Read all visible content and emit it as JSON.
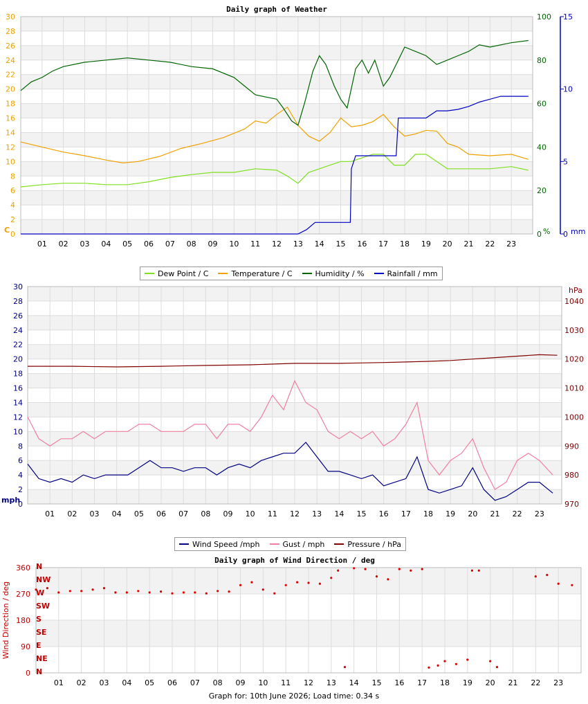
{
  "footer_text": "Graph for: 10th June 2026; Load time: 0.34 s",
  "x_ticks": [
    "01",
    "02",
    "03",
    "04",
    "05",
    "06",
    "07",
    "08",
    "09",
    "10",
    "11",
    "12",
    "13",
    "14",
    "15",
    "16",
    "17",
    "18",
    "19",
    "20",
    "21",
    "22",
    "23"
  ],
  "chart_data": [
    {
      "type": "line",
      "title": "Daily graph of Weather",
      "y_left": {
        "label": "C",
        "min": 0,
        "max": 30,
        "ticks": [
          0,
          2,
          4,
          6,
          8,
          10,
          12,
          14,
          16,
          18,
          20,
          22,
          24,
          26,
          28,
          30
        ],
        "color": "#f0a000"
      },
      "y_right_humidity": {
        "label": "%",
        "min": 0,
        "max": 100,
        "ticks": [
          0,
          20,
          40,
          60,
          80,
          100
        ],
        "color": "#006400"
      },
      "y_right_rain": {
        "label": "mm",
        "min": 0,
        "max": 15,
        "ticks": [
          0,
          5,
          10,
          15
        ],
        "color": "#0000c0"
      },
      "grid": true,
      "legend_position": "bottom",
      "series": [
        {
          "name": "Dew Point / C",
          "color": "#7fe020",
          "axis": "left",
          "x": [
            0,
            1,
            2,
            3,
            4,
            5,
            6,
            7,
            8,
            9,
            10,
            11,
            12,
            12.5,
            13,
            13.5,
            14,
            14.5,
            15,
            15.5,
            16,
            16.5,
            17,
            17.5,
            18,
            18.5,
            19,
            19.5,
            20,
            21,
            22,
            23,
            23.8
          ],
          "y": [
            6.5,
            6.8,
            7,
            7,
            6.8,
            6.8,
            7.2,
            7.8,
            8.2,
            8.5,
            8.5,
            9,
            8.8,
            8,
            7,
            8.5,
            9,
            9.5,
            10,
            10,
            10.5,
            11,
            11,
            9.5,
            9.5,
            11,
            11,
            10,
            9,
            9,
            9,
            9.3,
            8.8
          ]
        },
        {
          "name": "Temperature / C",
          "color": "#f0a000",
          "axis": "left",
          "x": [
            0,
            1,
            2,
            3,
            4,
            4.8,
            5.5,
            6.5,
            7.5,
            8.5,
            9.5,
            10.5,
            11,
            11.5,
            12,
            12.5,
            13,
            13.5,
            14,
            14.5,
            15,
            15.5,
            16,
            16.5,
            17,
            17.5,
            18,
            18.5,
            19,
            19.5,
            20,
            20.5,
            21,
            22,
            23,
            23.8
          ],
          "y": [
            12.7,
            12,
            11.3,
            10.8,
            10.2,
            9.8,
            10,
            10.7,
            11.8,
            12.5,
            13.3,
            14.5,
            15.6,
            15.3,
            16.5,
            17.5,
            15,
            13.5,
            12.8,
            14,
            16,
            14.8,
            15,
            15.5,
            16.5,
            14.8,
            13.5,
            13.8,
            14.3,
            14.2,
            12.5,
            12,
            11,
            10.8,
            11,
            10.3
          ]
        },
        {
          "name": "Humidity / %",
          "color": "#006400",
          "axis": "right_humidity",
          "x": [
            0,
            0.5,
            1,
            1.5,
            2,
            3,
            4,
            5,
            6,
            7,
            8,
            9,
            10,
            10.5,
            11,
            11.5,
            12,
            12.3,
            12.7,
            13,
            13.3,
            13.7,
            14,
            14.3,
            14.7,
            15,
            15.3,
            15.7,
            16,
            16.3,
            16.6,
            17,
            17.3,
            17.7,
            18,
            18.5,
            19,
            19.5,
            20,
            20.5,
            21,
            21.5,
            22,
            23,
            23.8
          ],
          "y": [
            66,
            70,
            72,
            75,
            77,
            79,
            80,
            81,
            80,
            79,
            77,
            76,
            72,
            68,
            64,
            63,
            62,
            58,
            52,
            50,
            60,
            75,
            82,
            78,
            68,
            62,
            58,
            76,
            80,
            74,
            80,
            68,
            72,
            80,
            86,
            84,
            82,
            78,
            80,
            82,
            84,
            87,
            86,
            88,
            89
          ]
        },
        {
          "name": "Rainfall / mm",
          "color": "#0000c0",
          "axis": "right_rain",
          "x": [
            0,
            13,
            13.4,
            13.8,
            14.2,
            14.8,
            15.45,
            15.5,
            15.7,
            16,
            16.2,
            17,
            17.6,
            17.7,
            18,
            18.5,
            19,
            19.5,
            20,
            20.5,
            21,
            21.5,
            22,
            22.5,
            23,
            23.8
          ],
          "y": [
            0,
            0,
            0.3,
            0.8,
            0.8,
            0.8,
            0.8,
            4.5,
            5.4,
            5.4,
            5.4,
            5.4,
            5.4,
            8,
            8,
            8,
            8,
            8.5,
            8.5,
            8.6,
            8.8,
            9.1,
            9.3,
            9.5,
            9.5,
            9.5
          ]
        }
      ]
    },
    {
      "type": "line",
      "title": "",
      "y_left": {
        "label": "mph",
        "min": 0,
        "max": 30,
        "ticks": [
          0,
          2,
          4,
          6,
          8,
          10,
          12,
          14,
          16,
          18,
          20,
          22,
          24,
          26,
          28,
          30
        ],
        "color": "#000080"
      },
      "y_right": {
        "label": "hPa",
        "min": 970,
        "max": 1045,
        "ticks": [
          970,
          980,
          990,
          1000,
          1010,
          1020,
          1030,
          1040
        ],
        "color": "#800000"
      },
      "grid": true,
      "legend_position": "bottom",
      "series": [
        {
          "name": "Wind Speed /mph",
          "color": "#000080",
          "axis": "left",
          "x": [
            0,
            0.5,
            1,
            1.5,
            2,
            2.5,
            3,
            3.5,
            4,
            4.5,
            5,
            5.5,
            6,
            6.5,
            7,
            7.5,
            8,
            8.5,
            9,
            9.5,
            10,
            10.5,
            11,
            11.5,
            12,
            12.5,
            13,
            13.5,
            14,
            14.5,
            15,
            15.5,
            16,
            16.5,
            17,
            17.5,
            18,
            18.5,
            19,
            19.5,
            20,
            20.5,
            21,
            21.5,
            22,
            22.5,
            23,
            23.6
          ],
          "y": [
            5.5,
            3.5,
            3,
            3.5,
            3,
            4,
            3.5,
            4,
            4,
            4,
            5,
            6,
            5,
            5,
            4.5,
            5,
            5,
            4,
            5,
            5.5,
            5,
            6,
            6.5,
            7,
            7,
            8.5,
            6.5,
            4.5,
            4.5,
            4,
            3.5,
            4,
            2.5,
            3,
            3.5,
            6.5,
            2,
            1.5,
            2,
            2.5,
            5,
            2,
            0.5,
            1,
            2,
            3,
            3,
            1.5
          ]
        },
        {
          "name": "Gust / mph",
          "color": "#f080a0",
          "axis": "left",
          "x": [
            0,
            0.5,
            1,
            1.5,
            2,
            2.5,
            3,
            3.5,
            4,
            4.5,
            5,
            5.5,
            6,
            6.5,
            7,
            7.5,
            8,
            8.5,
            9,
            9.5,
            10,
            10.5,
            11,
            11.5,
            12,
            12.5,
            13,
            13.5,
            14,
            14.5,
            15,
            15.5,
            16,
            16.5,
            17,
            17.5,
            18,
            18.5,
            19,
            19.5,
            20,
            20.5,
            21,
            21.5,
            22,
            22.5,
            23,
            23.6
          ],
          "y": [
            12,
            9,
            8,
            9,
            9,
            10,
            9,
            10,
            10,
            10,
            11,
            11,
            10,
            10,
            10,
            11,
            11,
            9,
            11,
            11,
            10,
            12,
            15,
            13,
            17,
            14,
            13,
            10,
            9,
            10,
            9,
            10,
            8,
            9,
            11,
            14,
            6,
            4,
            6,
            7,
            9,
            5,
            2,
            3,
            6,
            7,
            6,
            4
          ]
        },
        {
          "name": "Pressure / hPa",
          "color": "#800000",
          "axis": "right",
          "x": [
            0,
            2,
            4,
            6,
            8,
            10,
            12,
            14,
            16,
            17,
            18,
            19,
            20,
            21,
            22,
            23,
            23.8
          ],
          "y": [
            1017.5,
            1017.5,
            1017.3,
            1017.5,
            1017.8,
            1018,
            1018.5,
            1018.5,
            1018.8,
            1019,
            1019.2,
            1019.5,
            1020,
            1020.5,
            1021,
            1021.5,
            1021.3
          ]
        }
      ]
    },
    {
      "type": "scatter",
      "title": "Daily graph of Wind Direction / deg",
      "y_left": {
        "label": "Wind Direction / deg",
        "min": 0,
        "max": 360,
        "ticks": [
          0,
          90,
          180,
          270,
          360
        ],
        "color": "#c00000"
      },
      "compass_labels": [
        "N",
        "NE",
        "E",
        "SE",
        "S",
        "SW",
        "W",
        "NW",
        "N"
      ],
      "grid": true,
      "series": [
        {
          "name": "Wind Direction",
          "color": "#dd0000",
          "x": [
            0,
            0.5,
            1,
            1.5,
            2,
            2.5,
            3,
            3.5,
            4,
            4.5,
            5,
            5.5,
            6,
            6.5,
            7,
            7.5,
            8,
            8.5,
            9,
            9.5,
            10,
            10.5,
            11,
            11.5,
            12,
            12.5,
            13,
            13.3,
            13.6,
            14,
            14.5,
            15,
            15.5,
            16,
            16.5,
            17,
            17.3,
            17.7,
            18,
            18.5,
            19,
            19.2,
            19.5,
            20,
            20.3,
            22,
            22.5,
            23,
            23.6
          ],
          "y": [
            285,
            290,
            275,
            280,
            280,
            285,
            290,
            275,
            275,
            280,
            275,
            278,
            272,
            275,
            275,
            272,
            280,
            278,
            300,
            310,
            285,
            272,
            300,
            310,
            308,
            305,
            325,
            350,
            20,
            358,
            355,
            330,
            320,
            355,
            350,
            355,
            18,
            25,
            40,
            30,
            45,
            350,
            350,
            40,
            20,
            330,
            335,
            305,
            300
          ]
        }
      ]
    }
  ],
  "legends": {
    "weather": [
      {
        "label": "Dew Point / C",
        "color": "#7fe020"
      },
      {
        "label": "Temperature / C",
        "color": "#f0a000"
      },
      {
        "label": "Humidity / %",
        "color": "#006400"
      },
      {
        "label": "Rainfall / mm",
        "color": "#0000c0"
      }
    ],
    "wind": [
      {
        "label": "Wind Speed /mph",
        "color": "#000080"
      },
      {
        "label": "Gust / mph",
        "color": "#f080a0"
      },
      {
        "label": "Pressure / hPa",
        "color": "#800000"
      }
    ]
  }
}
